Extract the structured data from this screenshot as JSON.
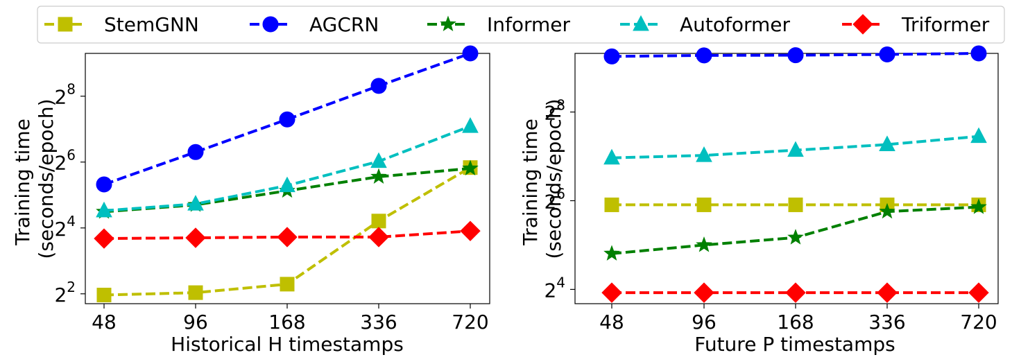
{
  "chart_data": [
    {
      "type": "line",
      "x_categories": [
        "48",
        "96",
        "168",
        "336",
        "720"
      ],
      "xlabel": "Historical H timestamps",
      "ylabel": [
        "Training time",
        "(seconds/epoch)"
      ],
      "y_scale": "log2",
      "y_ticks": [
        {
          "base": "2",
          "exp": "2",
          "value": 4
        },
        {
          "base": "2",
          "exp": "4",
          "value": 16
        },
        {
          "base": "2",
          "exp": "6",
          "value": 64
        },
        {
          "base": "2",
          "exp": "8",
          "value": 256
        }
      ],
      "ylim": [
        3.25,
        630
      ],
      "series": [
        {
          "name": "StemGNN",
          "values": [
            3.9,
            4.1,
            4.9,
            18.5,
            57
          ]
        },
        {
          "name": "AGCRN",
          "values": [
            40,
            79,
            157,
            318,
            630
          ]
        },
        {
          "name": "Informer",
          "values": [
            22.5,
            26,
            35,
            47,
            56
          ]
        },
        {
          "name": "Autoformer",
          "values": [
            23,
            26.5,
            39,
            65,
            136
          ]
        },
        {
          "name": "Triformer",
          "values": [
            12.8,
            13,
            13.2,
            13.2,
            15
          ]
        }
      ]
    },
    {
      "type": "line",
      "x_categories": [
        "48",
        "96",
        "168",
        "336",
        "720"
      ],
      "xlabel": "Future P timestamps",
      "ylabel": [
        "Training time",
        "(seconds/epoch)"
      ],
      "y_scale": "log2",
      "y_ticks": [
        {
          "base": "2",
          "exp": "4",
          "value": 16
        },
        {
          "base": "2",
          "exp": "6",
          "value": 64
        },
        {
          "base": "2",
          "exp": "8",
          "value": 256
        }
      ],
      "ylim": [
        12.8,
        640
      ],
      "series": [
        {
          "name": "StemGNN",
          "values": [
            60,
            60,
            60,
            60,
            60
          ]
        },
        {
          "name": "AGCRN",
          "values": [
            610,
            620,
            622,
            630,
            640
          ]
        },
        {
          "name": "Informer",
          "values": [
            28,
            32,
            36,
            54,
            58
          ]
        },
        {
          "name": "Autoformer",
          "values": [
            125,
            130,
            141,
            154,
            175
          ]
        },
        {
          "name": "Triformer",
          "values": [
            15.2,
            15.2,
            15.2,
            15.2,
            15.2
          ]
        }
      ]
    }
  ],
  "legend": [
    {
      "name": "StemGNN",
      "color": "#bfbf00",
      "marker": "square"
    },
    {
      "name": "AGCRN",
      "color": "#0000ff",
      "marker": "circle"
    },
    {
      "name": "Informer",
      "color": "#008000",
      "marker": "star"
    },
    {
      "name": "Autoformer",
      "color": "#00bfbf",
      "marker": "triangle"
    },
    {
      "name": "Triformer",
      "color": "#ff0000",
      "marker": "diamond"
    }
  ]
}
